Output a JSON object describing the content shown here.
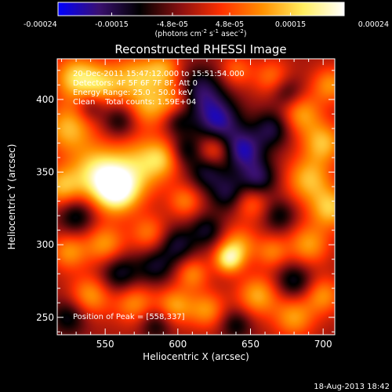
{
  "chart_data": {
    "type": "heatmap",
    "title": "Reconstructed RHESSI Image",
    "xlabel": "Heliocentric X (arcsec)",
    "ylabel": "Heliocentric Y (arcsec)",
    "xlim": [
      517,
      708
    ],
    "ylim": [
      238,
      428
    ],
    "x_ticks": [
      550,
      600,
      650,
      700
    ],
    "y_ticks": [
      250,
      300,
      350,
      400
    ],
    "colorbar": {
      "range": [
        -0.00024,
        0.00024
      ],
      "ticks": [
        {
          "value": -0.00024,
          "label": "-0.00024"
        },
        {
          "value": -0.00015,
          "label": "-0.00015"
        },
        {
          "value": -4.8e-05,
          "label": "-4.8e-05"
        },
        {
          "value": 4.8e-05,
          "label": "4.8e-05"
        },
        {
          "value": 0.00015,
          "label": "0.00015"
        },
        {
          "value": 0.00024,
          "label": "0.00024"
        }
      ],
      "units_line": [
        "(photons cm",
        "-2",
        " s",
        "-1",
        " asec",
        "-2",
        ")"
      ],
      "colors": [
        "#0000ff",
        "#3a1070",
        "#000000",
        "#8a1010",
        "#ff3000",
        "#ff9000",
        "#ffee60",
        "#ffffff"
      ]
    },
    "annotations": [
      "20-Dec-2011 15:47:12.000 to 15:51:54.000",
      "Detectors: 4F 5F 6F 7F 8F, Att 0",
      "Energy Range: 25.0 - 50.0 keV",
      "Clean    Total counts: 1.59E+04"
    ],
    "peak_label": "Position of Peak = [558,337]",
    "peak": {
      "x": 558,
      "y": 337
    },
    "blobs": [
      {
        "x": 558,
        "y": 337,
        "a": 0.00024,
        "s": 11
      },
      {
        "x": 545,
        "y": 350,
        "a": 0.00018,
        "s": 13
      },
      {
        "x": 575,
        "y": 355,
        "a": 0.00014,
        "s": 14
      },
      {
        "x": 525,
        "y": 380,
        "a": 0.00015,
        "s": 12
      },
      {
        "x": 530,
        "y": 415,
        "a": 0.00017,
        "s": 11
      },
      {
        "x": 548,
        "y": 410,
        "a": 0.00013,
        "s": 10
      },
      {
        "x": 570,
        "y": 415,
        "a": 0.00014,
        "s": 11
      },
      {
        "x": 580,
        "y": 395,
        "a": 0.00012,
        "s": 10
      },
      {
        "x": 590,
        "y": 420,
        "a": 0.00013,
        "s": 9
      },
      {
        "x": 598,
        "y": 400,
        "a": 0.00011,
        "s": 9
      },
      {
        "x": 520,
        "y": 340,
        "a": 0.00014,
        "s": 10
      },
      {
        "x": 590,
        "y": 360,
        "a": 0.0001,
        "s": 9
      },
      {
        "x": 550,
        "y": 300,
        "a": 0.00013,
        "s": 10
      },
      {
        "x": 525,
        "y": 295,
        "a": 0.00012,
        "s": 9
      },
      {
        "x": 580,
        "y": 308,
        "a": 0.0001,
        "s": 9
      },
      {
        "x": 540,
        "y": 265,
        "a": 0.00013,
        "s": 10
      },
      {
        "x": 570,
        "y": 260,
        "a": 0.00012,
        "s": 10
      },
      {
        "x": 598,
        "y": 258,
        "a": 0.00013,
        "s": 9
      },
      {
        "x": 610,
        "y": 280,
        "a": 0.00011,
        "s": 8
      },
      {
        "x": 620,
        "y": 255,
        "a": 0.00012,
        "s": 9
      },
      {
        "x": 605,
        "y": 330,
        "a": 0.0001,
        "s": 8
      },
      {
        "x": 625,
        "y": 365,
        "a": 0.00011,
        "s": 8
      },
      {
        "x": 650,
        "y": 330,
        "a": 0.00011,
        "s": 9
      },
      {
        "x": 642,
        "y": 300,
        "a": 0.00012,
        "s": 9
      },
      {
        "x": 635,
        "y": 290,
        "a": 0.00018,
        "s": 7
      },
      {
        "x": 655,
        "y": 265,
        "a": 0.00014,
        "s": 10
      },
      {
        "x": 665,
        "y": 295,
        "a": 0.0001,
        "s": 8
      },
      {
        "x": 680,
        "y": 250,
        "a": 0.00013,
        "s": 10
      },
      {
        "x": 700,
        "y": 265,
        "a": 0.00012,
        "s": 9
      },
      {
        "x": 690,
        "y": 300,
        "a": 0.00013,
        "s": 10
      },
      {
        "x": 705,
        "y": 325,
        "a": 0.00016,
        "s": 10
      },
      {
        "x": 690,
        "y": 345,
        "a": 0.00015,
        "s": 11
      },
      {
        "x": 700,
        "y": 370,
        "a": 0.00015,
        "s": 10
      },
      {
        "x": 685,
        "y": 390,
        "a": 0.00013,
        "s": 10
      },
      {
        "x": 705,
        "y": 410,
        "a": 0.00012,
        "s": 9
      },
      {
        "x": 665,
        "y": 415,
        "a": 0.0001,
        "s": 9
      },
      {
        "x": 640,
        "y": 420,
        "a": 9e-05,
        "s": 8
      },
      {
        "x": 615,
        "y": 405,
        "a": -0.00014,
        "s": 12
      },
      {
        "x": 628,
        "y": 385,
        "a": -0.00016,
        "s": 11
      },
      {
        "x": 645,
        "y": 365,
        "a": -0.00017,
        "s": 10
      },
      {
        "x": 655,
        "y": 345,
        "a": -0.00014,
        "s": 9
      },
      {
        "x": 635,
        "y": 335,
        "a": -0.00012,
        "s": 9
      },
      {
        "x": 665,
        "y": 380,
        "a": -0.00012,
        "s": 9
      },
      {
        "x": 620,
        "y": 350,
        "a": -0.00011,
        "s": 9
      },
      {
        "x": 605,
        "y": 365,
        "a": -0.0001,
        "s": 8
      },
      {
        "x": 530,
        "y": 320,
        "a": -0.00011,
        "s": 9
      },
      {
        "x": 560,
        "y": 280,
        "a": -0.00012,
        "s": 10
      },
      {
        "x": 585,
        "y": 285,
        "a": -0.0001,
        "s": 9
      },
      {
        "x": 600,
        "y": 300,
        "a": -0.00011,
        "s": 9
      },
      {
        "x": 620,
        "y": 310,
        "a": -0.0001,
        "s": 8
      },
      {
        "x": 670,
        "y": 320,
        "a": -9e-05,
        "s": 8
      },
      {
        "x": 680,
        "y": 275,
        "a": -0.00011,
        "s": 9
      },
      {
        "x": 525,
        "y": 250,
        "a": -0.0001,
        "s": 9
      },
      {
        "x": 585,
        "y": 245,
        "a": -9e-05,
        "s": 8
      },
      {
        "x": 640,
        "y": 245,
        "a": -9e-05,
        "s": 8
      },
      {
        "x": 560,
        "y": 385,
        "a": -9e-05,
        "s": 8
      },
      {
        "x": 600,
        "y": 385,
        "a": -8e-05,
        "s": 7
      },
      {
        "x": 675,
        "y": 405,
        "a": -9e-05,
        "s": 8
      },
      {
        "x": 540,
        "y": 395,
        "a": -8e-05,
        "s": 7
      }
    ]
  },
  "footer": {
    "timestamp": "18-Aug-2013 18:42"
  }
}
